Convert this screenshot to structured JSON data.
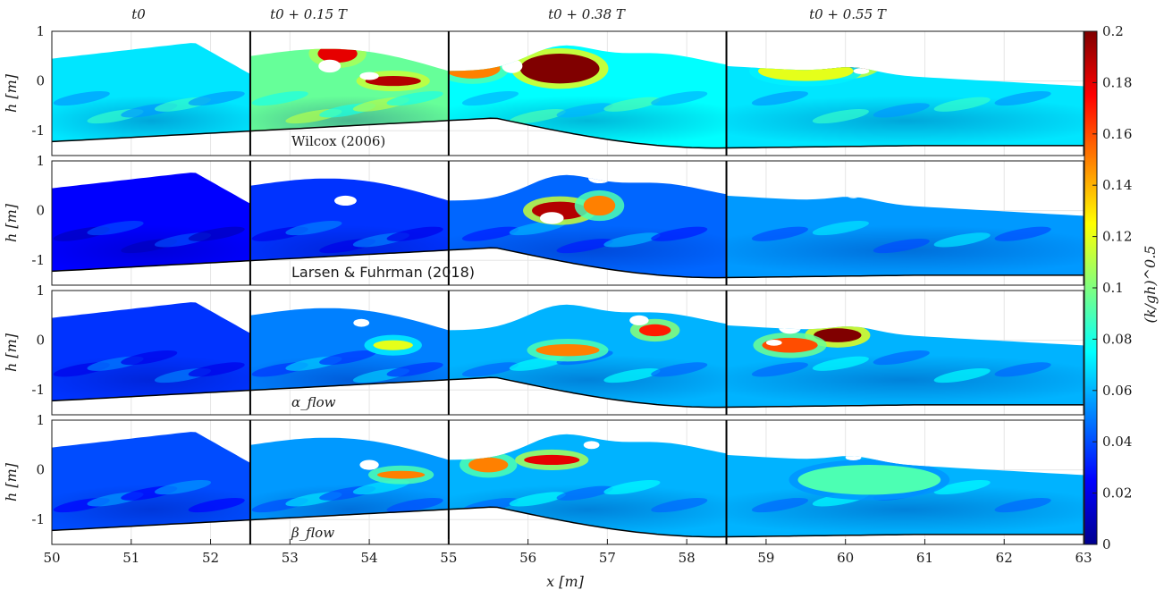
{
  "chart_data": {
    "type": "heatmap",
    "xlabel": "x [m]",
    "ylabel": "h [m]",
    "xlim": [
      50,
      63
    ],
    "ylim": [
      -1.5,
      1
    ],
    "xticks": [
      50,
      51,
      52,
      53,
      54,
      55,
      56,
      57,
      58,
      59,
      60,
      61,
      62,
      63
    ],
    "yticks": [
      -1,
      0,
      1
    ],
    "grid": true,
    "column_titles": [
      "t0",
      "t0 + 0.15 T",
      "t0 + 0.38 T",
      "t0 + 0.55 T"
    ],
    "column_x_ranges": [
      [
        50,
        52.5
      ],
      [
        52.5,
        55
      ],
      [
        55,
        58.5
      ],
      [
        58.5,
        63
      ]
    ],
    "rows": [
      {
        "annotation": "Wilcox (2006)"
      },
      {
        "annotation": "Larsen & Fuhrman (2018)"
      },
      {
        "annotation": "α_flow"
      },
      {
        "annotation": "β_flow"
      }
    ],
    "colorbar": {
      "label": "(k/gh)^0.5",
      "min": 0,
      "max": 0.2,
      "ticks": [
        0,
        0.02,
        0.04,
        0.06,
        0.08,
        0.1,
        0.12,
        0.14,
        0.16,
        0.18,
        0.2
      ],
      "colormap": "jet"
    },
    "tick_labels": {
      "x": [
        "50",
        "51",
        "52",
        "53",
        "54",
        "55",
        "56",
        "57",
        "58",
        "59",
        "60",
        "61",
        "62",
        "63"
      ],
      "y": [
        "1",
        "0",
        "-1"
      ],
      "cbar": [
        "0",
        "0.02",
        "0.04",
        "0.06",
        "0.08",
        "0.1",
        "0.12",
        "0.14",
        "0.16",
        "0.18",
        "0.2"
      ]
    }
  },
  "colors": {
    "jet": [
      "#00008f",
      "#0000ff",
      "#00ffff",
      "#ffff00",
      "#ff0000",
      "#800000"
    ],
    "axis": "#1a1a1a"
  }
}
